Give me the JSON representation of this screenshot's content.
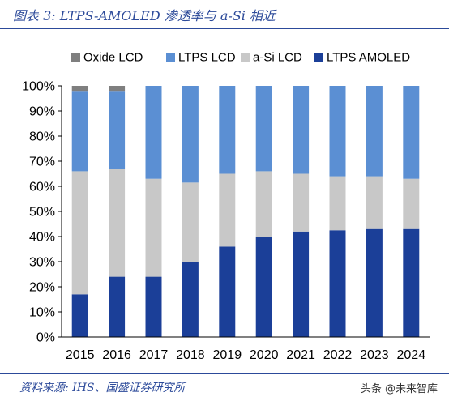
{
  "title": "图表 3:    LTPS-AMOLED 渗透率与 a-Si 相近",
  "source": "资料来源:  IHS、国盛证券研究所",
  "watermark": "头条 @未来智库",
  "chart_data": {
    "type": "bar",
    "stacked": true,
    "categories": [
      "2015",
      "2016",
      "2017",
      "2018",
      "2019",
      "2020",
      "2021",
      "2022",
      "2023",
      "2024"
    ],
    "series": [
      {
        "name": "LTPS AMOLED",
        "color": "#1b3f98",
        "values": [
          17,
          24,
          24,
          30,
          36,
          40,
          42,
          42.5,
          43,
          43
        ]
      },
      {
        "name": "a-Si LCD",
        "color": "#c8c8c8",
        "values": [
          49,
          43,
          39,
          31.5,
          29,
          26,
          23,
          21.5,
          21,
          20
        ]
      },
      {
        "name": "LTPS LCD",
        "color": "#5b8fd3",
        "values": [
          32,
          31,
          37,
          38.5,
          35,
          34,
          35,
          36,
          36,
          37
        ]
      },
      {
        "name": "Oxide LCD",
        "color": "#7f7f7f",
        "values": [
          2,
          2,
          0,
          0,
          0,
          0,
          0,
          0,
          0,
          0
        ]
      }
    ],
    "legend_order": [
      "Oxide LCD",
      "LTPS LCD",
      "a-Si LCD",
      "LTPS AMOLED"
    ],
    "legend_position": "top",
    "ylim": [
      0,
      100
    ],
    "yticks": [
      "0%",
      "10%",
      "20%",
      "30%",
      "40%",
      "50%",
      "60%",
      "70%",
      "80%",
      "90%",
      "100%"
    ],
    "grid": false
  }
}
